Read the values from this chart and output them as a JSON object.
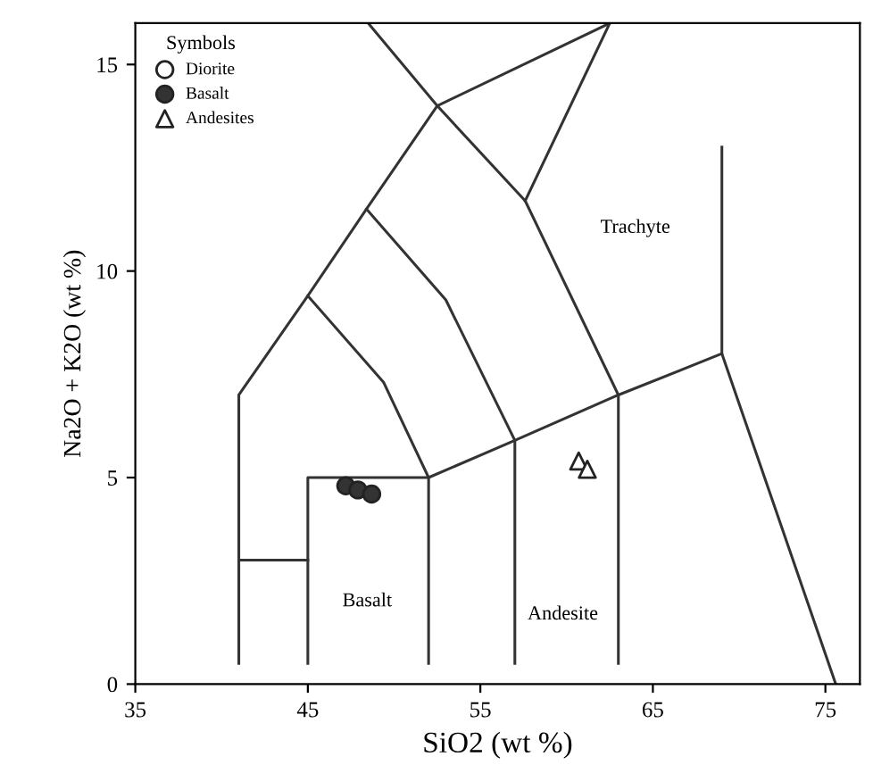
{
  "chart_data": {
    "type": "scatter",
    "xlabel": "SiO2 (wt %)",
    "ylabel": "Na2O + K2O (wt %)",
    "legend_title": "Symbols",
    "legend": "top left",
    "xlim": [
      35,
      77
    ],
    "ylim": [
      0,
      16
    ],
    "xticks": [
      35,
      45,
      55,
      65,
      75
    ],
    "yticks": [
      0,
      5,
      10,
      15
    ],
    "grid": false,
    "series": [
      {
        "name": "Diorite",
        "marker": "circle",
        "color": "#ffffff"
      },
      {
        "name": "Basalt",
        "marker": "circle",
        "color": "#333333",
        "x": [
          47.2,
          47.9,
          48.7
        ],
        "values": [
          4.8,
          4.7,
          4.6
        ]
      },
      {
        "name": "Andesites",
        "marker": "triangle",
        "color": "#ffffff",
        "x": [
          60.7,
          61.2
        ],
        "values": [
          5.4,
          5.2
        ]
      },
      {
        "type": "line",
        "color": "#333333",
        "x": [
          41,
          41,
          45,
          48.4,
          52.5,
          62.5
        ],
        "values": [
          0.5,
          7,
          9.4,
          11.5,
          14,
          16
        ]
      },
      {
        "type": "line",
        "color": "#333333",
        "x": [
          48.5,
          52.5,
          57.6,
          63,
          63
        ],
        "values": [
          16,
          14,
          11.7,
          7,
          0.5
        ]
      },
      {
        "type": "line",
        "color": "#333333",
        "x": [
          57.6,
          62.5
        ],
        "values": [
          11.7,
          16
        ]
      },
      {
        "type": "line",
        "color": "#333333",
        "x": [
          45,
          49.4,
          52,
          52
        ],
        "values": [
          9.4,
          7.3,
          5,
          0.5
        ]
      },
      {
        "type": "line",
        "color": "#333333",
        "x": [
          48.4,
          53,
          57,
          57
        ],
        "values": [
          11.5,
          9.3,
          5.9,
          0.5
        ]
      },
      {
        "type": "line",
        "color": "#333333",
        "x": [
          45,
          45,
          52,
          57,
          63,
          69,
          75.6
        ],
        "values": [
          0.5,
          5,
          5,
          5.9,
          7,
          8,
          0
        ]
      },
      {
        "type": "line",
        "color": "#333333",
        "x": [
          69,
          69
        ],
        "values": [
          8,
          13
        ]
      },
      {
        "type": "line",
        "color": "#333333",
        "x": [
          41,
          45
        ],
        "values": [
          3,
          3
        ]
      }
    ],
    "annotations": [
      "Trachyte",
      "Basalt",
      "Andesite"
    ]
  }
}
